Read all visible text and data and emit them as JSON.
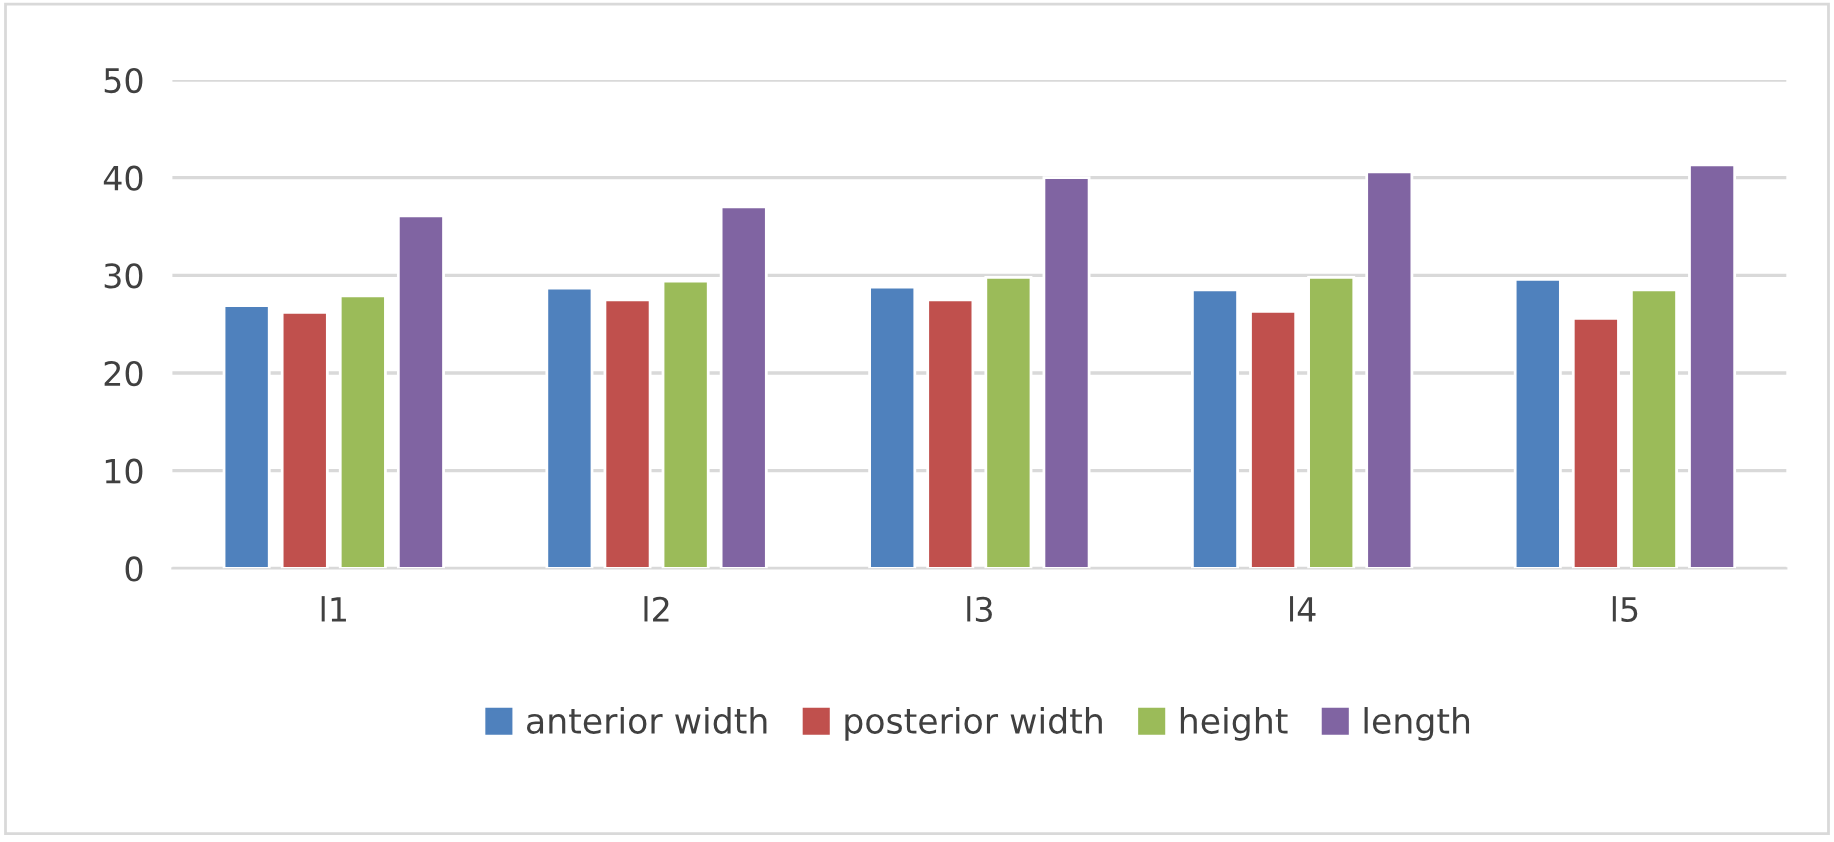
{
  "chart_data": {
    "type": "bar",
    "categories": [
      "l1",
      "l2",
      "l3",
      "l4",
      "l5"
    ],
    "series": [
      {
        "name": "anterior width",
        "color": "#4f81bd",
        "values": [
          26.9,
          28.7,
          28.8,
          28.5,
          29.6
        ]
      },
      {
        "name": "posterior width",
        "color": "#c0504d",
        "values": [
          26.2,
          27.5,
          27.5,
          26.3,
          25.6
        ]
      },
      {
        "name": "height",
        "color": "#9bbb59",
        "values": [
          27.9,
          29.4,
          29.8,
          29.8,
          28.5
        ]
      },
      {
        "name": "length",
        "color": "#8064a2",
        "values": [
          36.1,
          37.0,
          40.0,
          40.6,
          41.3
        ]
      }
    ],
    "ylim": [
      0,
      50
    ],
    "yticks": [
      0,
      10,
      20,
      30,
      40,
      50
    ],
    "grid": "y",
    "legend": "bottom"
  }
}
